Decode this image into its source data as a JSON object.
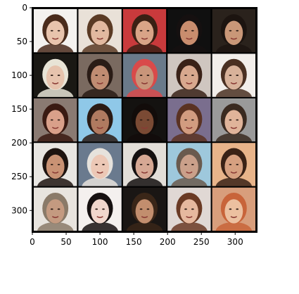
{
  "image": {
    "description_free": true,
    "axes": {
      "x_range": [
        0,
        332
      ],
      "y_range": [
        0,
        332
      ],
      "x_ticks": [
        0,
        50,
        100,
        150,
        200,
        250,
        300
      ],
      "y_ticks": [
        0,
        50,
        100,
        150,
        200,
        250,
        300
      ],
      "x_tick_labels": [
        "0",
        "50",
        "100",
        "150",
        "200",
        "250",
        "300"
      ],
      "y_tick_labels": [
        "0",
        "50",
        "100",
        "150",
        "200",
        "250",
        "300"
      ]
    },
    "grid": {
      "rows": 5,
      "cols": 5,
      "tile_size": 64,
      "gap": 2,
      "separator_color": "#000000"
    },
    "tiles": [
      {
        "skin": "#e8c4ad",
        "hair": "#4a2c1c",
        "bg": "#f4f2ef"
      },
      {
        "skin": "#e2b9a0",
        "hair": "#5a3a24",
        "bg": "#e9e1d8"
      },
      {
        "skin": "#d9a487",
        "hair": "#3a2014",
        "bg": "#c93a3c"
      },
      {
        "skin": "#c98d6e",
        "hair": "#151010",
        "bg": "#101010"
      },
      {
        "skin": "#c99778",
        "hair": "#1c1410",
        "bg": "#2a221c"
      },
      {
        "skin": "#e6c3ad",
        "hair": "#e8e4d6",
        "bg": "#1a1814"
      },
      {
        "skin": "#c08c72",
        "hair": "#2a1c16",
        "bg": "#7a6a60"
      },
      {
        "skin": "#c8957a",
        "hair": "#d94a4a",
        "bg": "#6a7a8a"
      },
      {
        "skin": "#d8a88e",
        "hair": "#3a2218",
        "bg": "#cfc6c0"
      },
      {
        "skin": "#d8b29a",
        "hair": "#4a3022",
        "bg": "#f2eeea"
      },
      {
        "skin": "#d9a08a",
        "hair": "#3a1a12",
        "bg": "#8a7a72"
      },
      {
        "skin": "#b07a60",
        "hair": "#2a1a14",
        "bg": "#8fc8e8"
      },
      {
        "skin": "#7a4a34",
        "hair": "#120c0a",
        "bg": "#141210"
      },
      {
        "skin": "#d29c80",
        "hair": "#5a3222",
        "bg": "#7a6e8e"
      },
      {
        "skin": "#e0b49a",
        "hair": "#3a2a20",
        "bg": "#9a9a9a"
      },
      {
        "skin": "#c99274",
        "hair": "#1e1410",
        "bg": "#e8e6e2"
      },
      {
        "skin": "#ecc8b6",
        "hair": "#e6e2dc",
        "bg": "#6a7a8e"
      },
      {
        "skin": "#d6a894",
        "hair": "#141010",
        "bg": "#e2ded8"
      },
      {
        "skin": "#caa08a",
        "hair": "#6a5a4e",
        "bg": "#9ec8dc"
      },
      {
        "skin": "#d6a080",
        "hair": "#3a2216",
        "bg": "#e8b48a"
      },
      {
        "skin": "#c49a80",
        "hair": "#8a7a68",
        "bg": "#e8e4de"
      },
      {
        "skin": "#f0d6cc",
        "hair": "#161010",
        "bg": "#f4f0ee"
      },
      {
        "skin": "#c28e6e",
        "hair": "#3a2618",
        "bg": "#1a1614"
      },
      {
        "skin": "#e6b89e",
        "hair": "#6a3a24",
        "bg": "#e0d8d4"
      },
      {
        "skin": "#ecc0a0",
        "hair": "#c8643a",
        "bg": "#d89e7c"
      }
    ]
  }
}
